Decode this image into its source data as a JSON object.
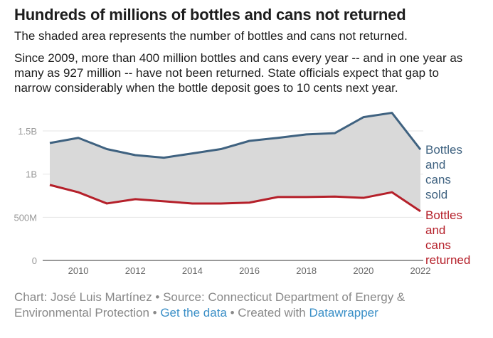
{
  "title": "Hundreds of millions of bottles and cans not returned",
  "subtitle": "The shaded area represents the number of bottles and cans not returned.",
  "description": "Since 2009, more than 400 million bottles and cans every year -- and in one year as many as 927 million -- have not been returned. State officials expect that gap to narrow considerably when the bottle deposit goes to 10 cents next year.",
  "footer": {
    "credit": "Chart: José Luis Martínez • Source: Connecticut Department of Energy & Environmental Protection • ",
    "get_data": "Get the data",
    "created": " • Created with ",
    "datawrapper": "Datawrapper"
  },
  "chart_data": {
    "type": "area",
    "x": [
      2009,
      2010,
      2011,
      2012,
      2013,
      2014,
      2015,
      2016,
      2017,
      2018,
      2019,
      2020,
      2021,
      2022
    ],
    "xticks": [
      "2010",
      "2012",
      "2014",
      "2016",
      "2018",
      "2020",
      "2022"
    ],
    "yticks": [
      {
        "value": 0,
        "label": "0"
      },
      {
        "value": 0.5,
        "label": "500M"
      },
      {
        "value": 1,
        "label": "1B"
      },
      {
        "value": 1.5,
        "label": "1.5B"
      }
    ],
    "ylim": [
      0,
      1.75
    ],
    "y_unit": "billions",
    "grid": true,
    "legend": "direct labels at right",
    "shaded_between_series": true,
    "fill_color": "#d9d9d9",
    "series": [
      {
        "name": "Bottles and cans sold",
        "color": "#3f6280",
        "values": [
          1.36,
          1.42,
          1.29,
          1.22,
          1.19,
          1.24,
          1.29,
          1.385,
          1.42,
          1.46,
          1.475,
          1.66,
          1.71,
          1.285
        ]
      },
      {
        "name": "Bottles and cans returned",
        "color": "#b5202a",
        "values": [
          0.875,
          0.79,
          0.66,
          0.71,
          0.685,
          0.66,
          0.66,
          0.67,
          0.735,
          0.735,
          0.74,
          0.725,
          0.79,
          0.57
        ]
      }
    ]
  }
}
